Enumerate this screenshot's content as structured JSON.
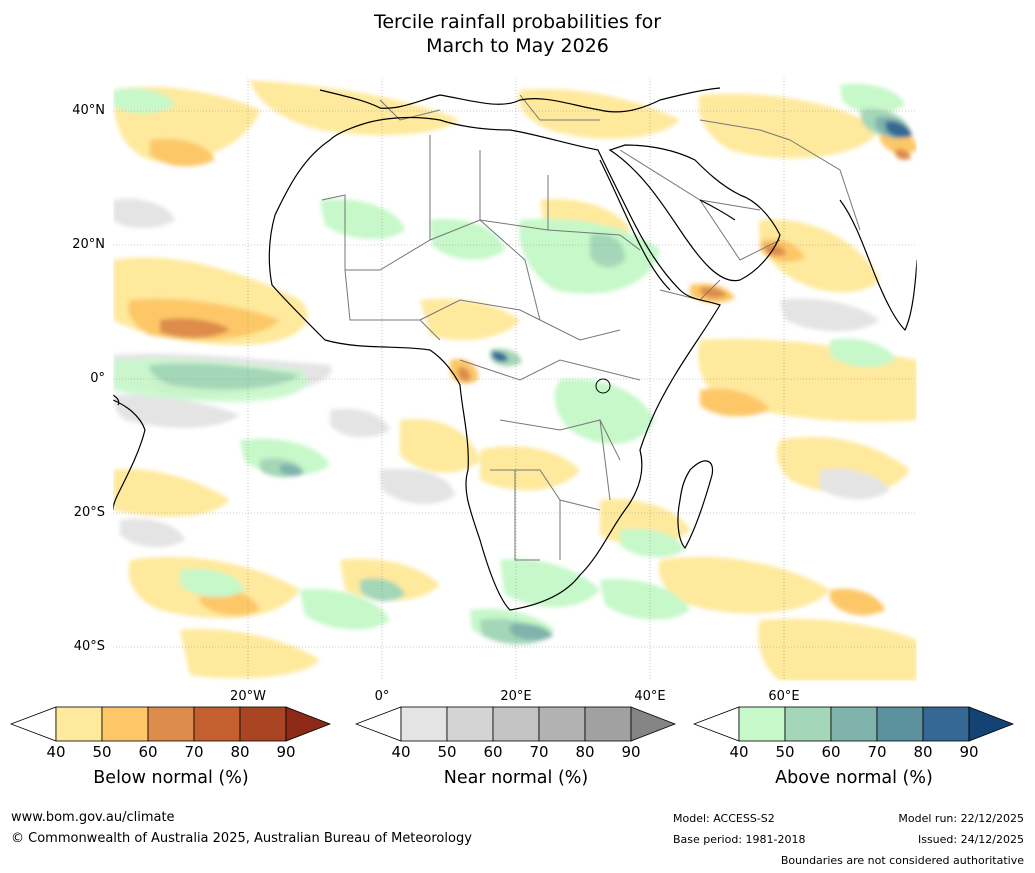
{
  "title": {
    "line1": "Tercile rainfall probabilities for",
    "line2": "March to May 2026"
  },
  "map": {
    "region": "Africa and surrounding oceans",
    "lat_labels": [
      "40°N",
      "20°N",
      "0°",
      "20°S",
      "40°S"
    ],
    "lon_labels": [
      "20°W",
      "0°",
      "20°E",
      "40°E",
      "60°E"
    ]
  },
  "colorbars": [
    {
      "name": "Below normal (%)",
      "ticks": [
        "40",
        "50",
        "60",
        "70",
        "80",
        "90"
      ],
      "colors": [
        "#ffffff",
        "#fee99c",
        "#fdc767",
        "#dd8c4b",
        "#c45f30",
        "#aa4524",
        "#8c2a17"
      ]
    },
    {
      "name": "Near normal (%)",
      "ticks": [
        "40",
        "50",
        "60",
        "70",
        "80",
        "90"
      ],
      "colors": [
        "#ffffff",
        "#e4e4e4",
        "#d4d4d4",
        "#c3c3c3",
        "#b2b2b2",
        "#a1a1a1",
        "#848484"
      ]
    },
    {
      "name": "Above normal (%)",
      "ticks": [
        "40",
        "50",
        "60",
        "70",
        "80",
        "90"
      ],
      "colors": [
        "#ffffff",
        "#c6f8c9",
        "#a4d6b8",
        "#80b3ac",
        "#5b929e",
        "#346794",
        "#154275"
      ]
    }
  ],
  "footer": {
    "url": "www.bom.gov.au/climate",
    "copyright": "© Commonwealth of Australia 2025, Australian Bureau of Meteorology",
    "model": "Model: ACCESS-S2",
    "base_period": "Base period: 1981-2018",
    "model_run": "Model run: 22/12/2025",
    "issued": "Issued: 24/12/2025",
    "disclaimer": "Boundaries are not considered authoritative"
  }
}
